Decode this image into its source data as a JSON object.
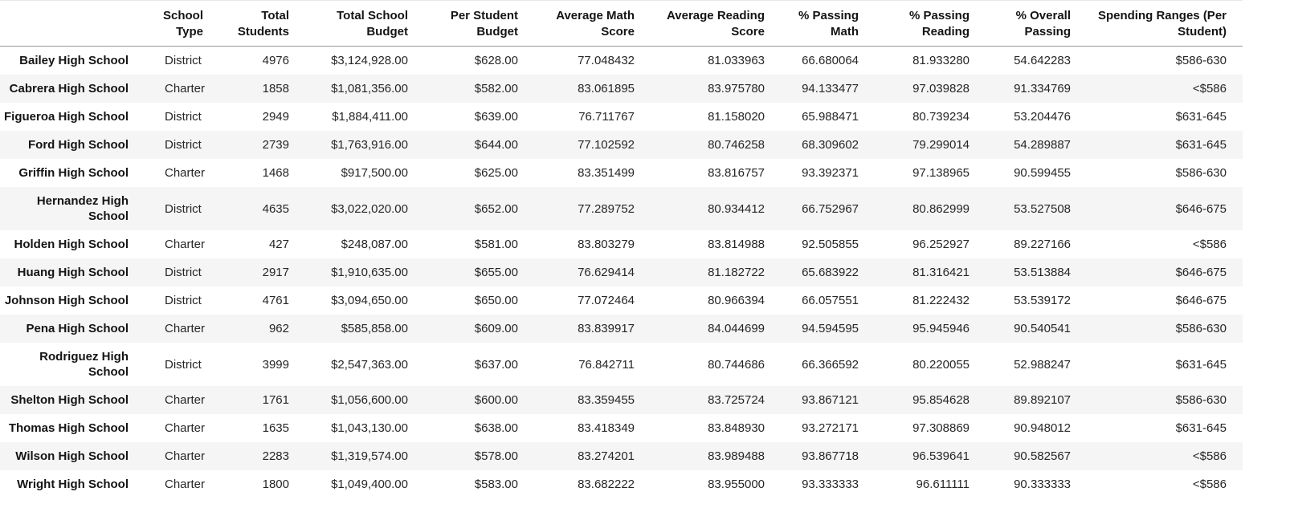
{
  "table": {
    "columns": [
      {
        "id": "school",
        "label": ""
      },
      {
        "id": "school_type",
        "label": "School\nType"
      },
      {
        "id": "total_students",
        "label": "Total\nStudents"
      },
      {
        "id": "total_school_budget",
        "label": "Total School\nBudget"
      },
      {
        "id": "per_student_budget",
        "label": "Per Student\nBudget"
      },
      {
        "id": "avg_math_score",
        "label": "Average Math\nScore"
      },
      {
        "id": "avg_reading_score",
        "label": "Average Reading\nScore"
      },
      {
        "id": "pct_passing_math",
        "label": "% Passing\nMath"
      },
      {
        "id": "pct_passing_reading",
        "label": "% Passing\nReading"
      },
      {
        "id": "pct_overall_passing",
        "label": "% Overall\nPassing"
      },
      {
        "id": "spending_ranges",
        "label": "Spending Ranges (Per\nStudent)"
      }
    ],
    "rows": [
      {
        "school": "Bailey High School",
        "school_type": "District",
        "total_students": "4976",
        "total_school_budget": "$3,124,928.00",
        "per_student_budget": "$628.00",
        "avg_math_score": "77.048432",
        "avg_reading_score": "81.033963",
        "pct_passing_math": "66.680064",
        "pct_passing_reading": "81.933280",
        "pct_overall_passing": "54.642283",
        "spending_ranges": "$586-630"
      },
      {
        "school": "Cabrera High School",
        "school_type": "Charter",
        "total_students": "1858",
        "total_school_budget": "$1,081,356.00",
        "per_student_budget": "$582.00",
        "avg_math_score": "83.061895",
        "avg_reading_score": "83.975780",
        "pct_passing_math": "94.133477",
        "pct_passing_reading": "97.039828",
        "pct_overall_passing": "91.334769",
        "spending_ranges": "<$586"
      },
      {
        "school": "Figueroa High School",
        "school_type": "District",
        "total_students": "2949",
        "total_school_budget": "$1,884,411.00",
        "per_student_budget": "$639.00",
        "avg_math_score": "76.711767",
        "avg_reading_score": "81.158020",
        "pct_passing_math": "65.988471",
        "pct_passing_reading": "80.739234",
        "pct_overall_passing": "53.204476",
        "spending_ranges": "$631-645"
      },
      {
        "school": "Ford High School",
        "school_type": "District",
        "total_students": "2739",
        "total_school_budget": "$1,763,916.00",
        "per_student_budget": "$644.00",
        "avg_math_score": "77.102592",
        "avg_reading_score": "80.746258",
        "pct_passing_math": "68.309602",
        "pct_passing_reading": "79.299014",
        "pct_overall_passing": "54.289887",
        "spending_ranges": "$631-645"
      },
      {
        "school": "Griffin High School",
        "school_type": "Charter",
        "total_students": "1468",
        "total_school_budget": "$917,500.00",
        "per_student_budget": "$625.00",
        "avg_math_score": "83.351499",
        "avg_reading_score": "83.816757",
        "pct_passing_math": "93.392371",
        "pct_passing_reading": "97.138965",
        "pct_overall_passing": "90.599455",
        "spending_ranges": "$586-630"
      },
      {
        "school": "Hernandez High\nSchool",
        "school_type": "District",
        "total_students": "4635",
        "total_school_budget": "$3,022,020.00",
        "per_student_budget": "$652.00",
        "avg_math_score": "77.289752",
        "avg_reading_score": "80.934412",
        "pct_passing_math": "66.752967",
        "pct_passing_reading": "80.862999",
        "pct_overall_passing": "53.527508",
        "spending_ranges": "$646-675"
      },
      {
        "school": "Holden High School",
        "school_type": "Charter",
        "total_students": "427",
        "total_school_budget": "$248,087.00",
        "per_student_budget": "$581.00",
        "avg_math_score": "83.803279",
        "avg_reading_score": "83.814988",
        "pct_passing_math": "92.505855",
        "pct_passing_reading": "96.252927",
        "pct_overall_passing": "89.227166",
        "spending_ranges": "<$586"
      },
      {
        "school": "Huang High School",
        "school_type": "District",
        "total_students": "2917",
        "total_school_budget": "$1,910,635.00",
        "per_student_budget": "$655.00",
        "avg_math_score": "76.629414",
        "avg_reading_score": "81.182722",
        "pct_passing_math": "65.683922",
        "pct_passing_reading": "81.316421",
        "pct_overall_passing": "53.513884",
        "spending_ranges": "$646-675"
      },
      {
        "school": "Johnson High School",
        "school_type": "District",
        "total_students": "4761",
        "total_school_budget": "$3,094,650.00",
        "per_student_budget": "$650.00",
        "avg_math_score": "77.072464",
        "avg_reading_score": "80.966394",
        "pct_passing_math": "66.057551",
        "pct_passing_reading": "81.222432",
        "pct_overall_passing": "53.539172",
        "spending_ranges": "$646-675"
      },
      {
        "school": "Pena High School",
        "school_type": "Charter",
        "total_students": "962",
        "total_school_budget": "$585,858.00",
        "per_student_budget": "$609.00",
        "avg_math_score": "83.839917",
        "avg_reading_score": "84.044699",
        "pct_passing_math": "94.594595",
        "pct_passing_reading": "95.945946",
        "pct_overall_passing": "90.540541",
        "spending_ranges": "$586-630"
      },
      {
        "school": "Rodriguez High\nSchool",
        "school_type": "District",
        "total_students": "3999",
        "total_school_budget": "$2,547,363.00",
        "per_student_budget": "$637.00",
        "avg_math_score": "76.842711",
        "avg_reading_score": "80.744686",
        "pct_passing_math": "66.366592",
        "pct_passing_reading": "80.220055",
        "pct_overall_passing": "52.988247",
        "spending_ranges": "$631-645"
      },
      {
        "school": "Shelton High School",
        "school_type": "Charter",
        "total_students": "1761",
        "total_school_budget": "$1,056,600.00",
        "per_student_budget": "$600.00",
        "avg_math_score": "83.359455",
        "avg_reading_score": "83.725724",
        "pct_passing_math": "93.867121",
        "pct_passing_reading": "95.854628",
        "pct_overall_passing": "89.892107",
        "spending_ranges": "$586-630"
      },
      {
        "school": "Thomas High School",
        "school_type": "Charter",
        "total_students": "1635",
        "total_school_budget": "$1,043,130.00",
        "per_student_budget": "$638.00",
        "avg_math_score": "83.418349",
        "avg_reading_score": "83.848930",
        "pct_passing_math": "93.272171",
        "pct_passing_reading": "97.308869",
        "pct_overall_passing": "90.948012",
        "spending_ranges": "$631-645"
      },
      {
        "school": "Wilson High School",
        "school_type": "Charter",
        "total_students": "2283",
        "total_school_budget": "$1,319,574.00",
        "per_student_budget": "$578.00",
        "avg_math_score": "83.274201",
        "avg_reading_score": "83.989488",
        "pct_passing_math": "93.867718",
        "pct_passing_reading": "96.539641",
        "pct_overall_passing": "90.582567",
        "spending_ranges": "<$586"
      },
      {
        "school": "Wright High School",
        "school_type": "Charter",
        "total_students": "1800",
        "total_school_budget": "$1,049,400.00",
        "per_student_budget": "$583.00",
        "avg_math_score": "83.682222",
        "avg_reading_score": "83.955000",
        "pct_passing_math": "93.333333",
        "pct_passing_reading": "96.611111",
        "pct_overall_passing": "90.333333",
        "spending_ranges": "<$586"
      }
    ]
  },
  "colors": {
    "stripe_row_background": "#f5f5f5",
    "header_divider": "#969696",
    "bold_text": "#141414",
    "value_text": "#262626"
  }
}
